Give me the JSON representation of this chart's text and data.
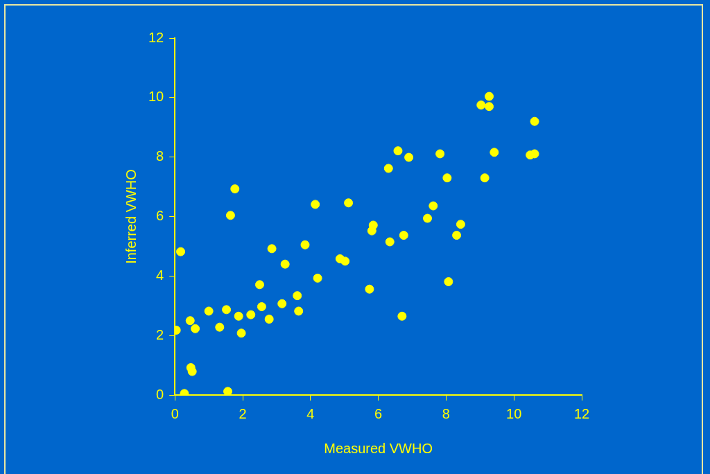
{
  "chart_data": {
    "type": "scatter",
    "xlabel": "Measured VWHO",
    "ylabel": "Inferred VWHO",
    "x": [
      0.04,
      0.17,
      0.28,
      0.45,
      0.47,
      0.51,
      0.6,
      1.0,
      1.32,
      1.52,
      1.56,
      1.64,
      1.77,
      1.88,
      1.96,
      2.24,
      2.5,
      2.56,
      2.78,
      2.86,
      3.16,
      3.25,
      3.61,
      3.65,
      3.84,
      4.14,
      4.21,
      4.87,
      5.02,
      5.12,
      5.74,
      5.81,
      5.85,
      6.3,
      6.34,
      6.58,
      6.7,
      6.75,
      6.9,
      7.45,
      7.62,
      7.82,
      8.03,
      8.07,
      8.31,
      8.43,
      9.03,
      9.14,
      9.27,
      9.27,
      9.42,
      10.48,
      10.61,
      10.61
    ],
    "values": [
      2.18,
      4.82,
      0.05,
      2.5,
      0.92,
      0.79,
      2.23,
      2.82,
      2.28,
      2.87,
      0.12,
      6.04,
      6.93,
      2.65,
      2.08,
      2.7,
      3.71,
      2.97,
      2.55,
      4.92,
      3.07,
      4.4,
      3.34,
      2.82,
      5.05,
      6.41,
      3.93,
      4.58,
      4.5,
      6.46,
      3.56,
      5.52,
      5.71,
      7.62,
      5.15,
      8.21,
      2.65,
      5.37,
      7.99,
      5.94,
      6.36,
      8.11,
      7.3,
      3.81,
      5.37,
      5.74,
      9.75,
      7.3,
      10.04,
      9.7,
      8.16,
      8.07,
      8.11,
      9.2
    ],
    "color": "#ffff00",
    "marker": "circle",
    "grid": false,
    "legend": false,
    "xlim": [
      0,
      12
    ],
    "xticks": [
      0,
      2,
      4,
      6,
      8,
      10,
      12
    ],
    "ylim": [
      0,
      12
    ],
    "yticks": [
      0,
      2,
      4,
      6,
      8,
      10,
      12
    ]
  }
}
